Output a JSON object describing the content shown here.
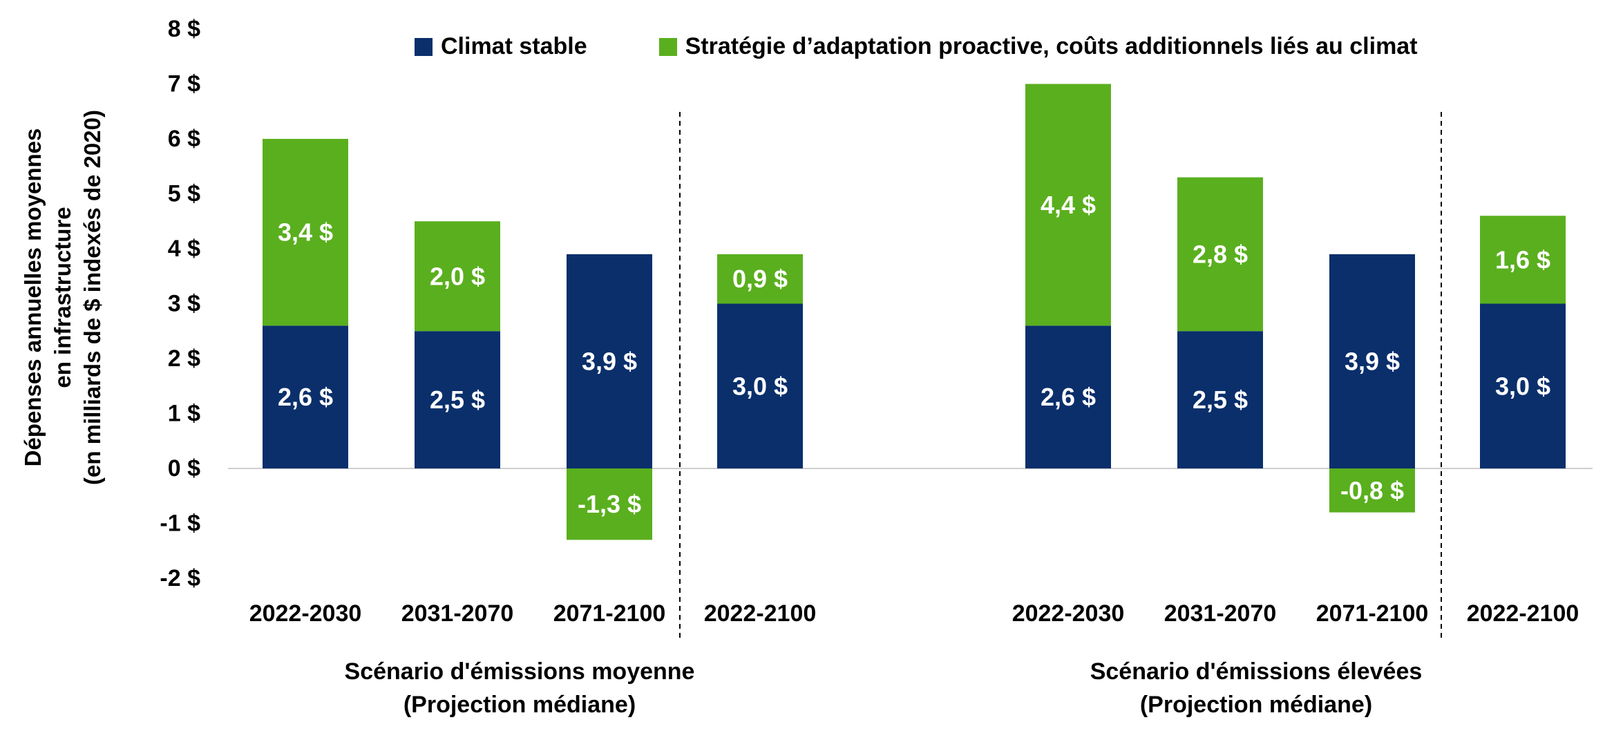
{
  "chart_data": {
    "type": "bar",
    "stacked": true,
    "ylabel_lines": [
      "Dépenses annuelles moyennes",
      "en infrastructure",
      "(en milliards de $ indexés de 2020)"
    ],
    "ylim": [
      -2,
      8
    ],
    "yticks": [
      {
        "value": 8,
        "label": "8 $"
      },
      {
        "value": 7,
        "label": "7 $"
      },
      {
        "value": 6,
        "label": "6 $"
      },
      {
        "value": 5,
        "label": "5 $"
      },
      {
        "value": 4,
        "label": "4 $"
      },
      {
        "value": 3,
        "label": "3 $"
      },
      {
        "value": 2,
        "label": "2 $"
      },
      {
        "value": 1,
        "label": "1 $"
      },
      {
        "value": 0,
        "label": "0 $"
      },
      {
        "value": -1,
        "label": "-1 $"
      },
      {
        "value": -2,
        "label": "-2 $"
      }
    ],
    "grid": false,
    "legend_position": "top",
    "series": [
      {
        "name": "Climat stable",
        "color": "#0a2f6b"
      },
      {
        "name": "Stratégie d’adaptation proactive, coûts additionnels liés au climat",
        "color": "#5aaf1e"
      }
    ],
    "groups": [
      {
        "title_lines": [
          "Scénario d'émissions moyenne",
          "(Projection médiane)"
        ],
        "bars": [
          {
            "category": "2022-2030",
            "stable": 2.6,
            "stable_label": "2,6 $",
            "adaptation": 3.4,
            "adaptation_label": "3,4 $"
          },
          {
            "category": "2031-2070",
            "stable": 2.5,
            "stable_label": "2,5 $",
            "adaptation": 2.0,
            "adaptation_label": "2,0 $"
          },
          {
            "category": "2071-2100",
            "stable": 3.9,
            "stable_label": "3,9 $",
            "adaptation": -1.3,
            "adaptation_label": "-1,3 $"
          },
          {
            "category": "2022-2100",
            "stable": 3.0,
            "stable_label": "3,0 $",
            "adaptation": 0.9,
            "adaptation_label": "0,9 $"
          }
        ]
      },
      {
        "title_lines": [
          "Scénario d'émissions élevées",
          "(Projection médiane)"
        ],
        "bars": [
          {
            "category": "2022-2030",
            "stable": 2.6,
            "stable_label": "2,6 $",
            "adaptation": 4.4,
            "adaptation_label": "4,4 $"
          },
          {
            "category": "2031-2070",
            "stable": 2.5,
            "stable_label": "2,5 $",
            "adaptation": 2.8,
            "adaptation_label": "2,8 $"
          },
          {
            "category": "2071-2100",
            "stable": 3.9,
            "stable_label": "3,9 $",
            "adaptation": -0.8,
            "adaptation_label": "-0,8 $"
          },
          {
            "category": "2022-2100",
            "stable": 3.0,
            "stable_label": "3,0 $",
            "adaptation": 1.6,
            "adaptation_label": "1,6 $"
          }
        ]
      }
    ]
  }
}
